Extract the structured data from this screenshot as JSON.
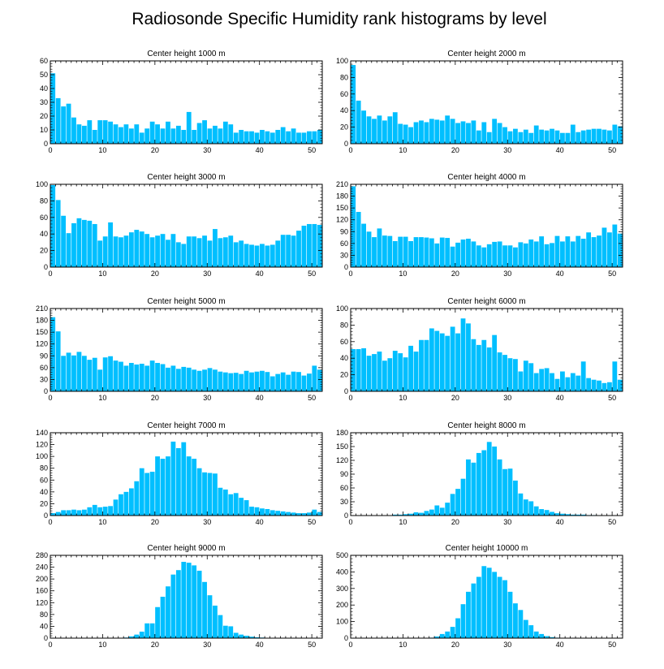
{
  "title": "Radiosonde Specific Humidity rank histograms by level",
  "bar_color": "#00bfff",
  "chart_data": [
    {
      "type": "bar",
      "title": "Center height 1000 m",
      "xticks": [
        0,
        10,
        20,
        30,
        40,
        50
      ],
      "yticks": [
        0,
        10,
        20,
        30,
        40,
        50,
        60
      ],
      "ylim": [
        0,
        60
      ],
      "xlim": [
        0,
        52
      ],
      "values": [
        51,
        33,
        27,
        29,
        19,
        14,
        13,
        17,
        10,
        17,
        17,
        16,
        14,
        12,
        14,
        11,
        14,
        8,
        11,
        16,
        14,
        11,
        16,
        11,
        13,
        10,
        23,
        10,
        15,
        17,
        11,
        13,
        11,
        16,
        14,
        8,
        10,
        9,
        9,
        8,
        10,
        9,
        8,
        10,
        12,
        9,
        11,
        8,
        8,
        9,
        9,
        10
      ]
    },
    {
      "type": "bar",
      "title": "Center height 2000 m",
      "xticks": [
        0,
        10,
        20,
        30,
        40,
        50
      ],
      "yticks": [
        0,
        20,
        40,
        60,
        80,
        100
      ],
      "ylim": [
        0,
        100
      ],
      "xlim": [
        0,
        52
      ],
      "values": [
        95,
        52,
        40,
        33,
        30,
        34,
        28,
        33,
        38,
        24,
        23,
        20,
        26,
        28,
        26,
        30,
        29,
        28,
        34,
        30,
        25,
        27,
        25,
        28,
        16,
        26,
        14,
        30,
        25,
        20,
        15,
        18,
        14,
        17,
        13,
        22,
        17,
        16,
        18,
        16,
        13,
        13,
        23,
        14,
        16,
        17,
        18,
        18,
        17,
        16,
        23,
        21
      ]
    },
    {
      "type": "bar",
      "title": "Center height 3000 m",
      "xticks": [
        0,
        10,
        20,
        30,
        40,
        50
      ],
      "yticks": [
        0,
        20,
        40,
        60,
        80,
        100
      ],
      "ylim": [
        0,
        100
      ],
      "xlim": [
        0,
        52
      ],
      "values": [
        99,
        81,
        62,
        41,
        53,
        59,
        57,
        56,
        52,
        32,
        37,
        54,
        37,
        36,
        38,
        42,
        45,
        43,
        40,
        36,
        38,
        40,
        33,
        40,
        30,
        28,
        37,
        37,
        35,
        38,
        32,
        46,
        35,
        36,
        38,
        30,
        32,
        28,
        27,
        26,
        28,
        26,
        27,
        32,
        39,
        39,
        38,
        44,
        50,
        52,
        52,
        51
      ]
    },
    {
      "type": "bar",
      "title": "Center height 4000 m",
      "xticks": [
        0,
        10,
        20,
        30,
        40,
        50
      ],
      "yticks": [
        0,
        30,
        60,
        90,
        120,
        150,
        180,
        210
      ],
      "ylim": [
        0,
        210
      ],
      "xlim": [
        0,
        52
      ],
      "values": [
        205,
        140,
        110,
        90,
        76,
        98,
        80,
        79,
        66,
        77,
        77,
        66,
        76,
        76,
        75,
        73,
        60,
        75,
        74,
        52,
        62,
        70,
        72,
        65,
        55,
        50,
        58,
        64,
        65,
        55,
        55,
        50,
        63,
        60,
        70,
        65,
        78,
        58,
        61,
        79,
        65,
        78,
        65,
        79,
        72,
        88,
        76,
        80,
        100,
        88,
        108,
        85
      ]
    },
    {
      "type": "bar",
      "title": "Center height 5000 m",
      "xticks": [
        0,
        10,
        20,
        30,
        40,
        50
      ],
      "yticks": [
        0,
        30,
        60,
        90,
        120,
        150,
        180,
        210
      ],
      "ylim": [
        0,
        210
      ],
      "xlim": [
        0,
        52
      ],
      "values": [
        188,
        152,
        90,
        98,
        91,
        100,
        90,
        80,
        85,
        55,
        86,
        89,
        78,
        75,
        65,
        72,
        68,
        70,
        65,
        78,
        72,
        69,
        60,
        65,
        57,
        62,
        60,
        55,
        52,
        55,
        59,
        55,
        50,
        48,
        46,
        47,
        44,
        52,
        48,
        50,
        52,
        49,
        38,
        44,
        48,
        42,
        50,
        49,
        40,
        45,
        65,
        55
      ]
    },
    {
      "type": "bar",
      "title": "Center height 6000 m",
      "xticks": [
        0,
        10,
        20,
        30,
        40,
        50
      ],
      "yticks": [
        0,
        20,
        40,
        60,
        80,
        100
      ],
      "ylim": [
        0,
        100
      ],
      "xlim": [
        0,
        52
      ],
      "values": [
        51,
        51,
        52,
        43,
        45,
        48,
        37,
        40,
        49,
        46,
        41,
        55,
        48,
        62,
        62,
        76,
        73,
        70,
        67,
        78,
        70,
        88,
        82,
        63,
        56,
        62,
        53,
        68,
        47,
        44,
        40,
        39,
        24,
        37,
        34,
        22,
        27,
        28,
        22,
        15,
        24,
        17,
        22,
        19,
        36,
        16,
        14,
        13,
        10,
        11,
        36,
        14
      ]
    },
    {
      "type": "bar",
      "title": "Center height 7000 m",
      "xticks": [
        0,
        10,
        20,
        30,
        40,
        50
      ],
      "yticks": [
        0,
        20,
        40,
        60,
        80,
        100,
        120,
        140
      ],
      "ylim": [
        0,
        140
      ],
      "xlim": [
        0,
        52
      ],
      "values": [
        4,
        6,
        9,
        9,
        10,
        9,
        10,
        14,
        18,
        14,
        15,
        16,
        27,
        36,
        40,
        46,
        58,
        80,
        72,
        74,
        100,
        96,
        100,
        125,
        114,
        124,
        100,
        96,
        80,
        73,
        72,
        71,
        47,
        44,
        36,
        38,
        30,
        26,
        15,
        14,
        12,
        11,
        9,
        8,
        7,
        6,
        5,
        4,
        4,
        5,
        10,
        6
      ]
    },
    {
      "type": "bar",
      "title": "Center height 8000 m",
      "xticks": [
        0,
        10,
        20,
        30,
        40,
        50
      ],
      "yticks": [
        0,
        30,
        60,
        90,
        120,
        150,
        180
      ],
      "ylim": [
        0,
        180
      ],
      "xlim": [
        0,
        52
      ],
      "values": [
        0,
        0,
        0,
        0,
        0,
        0,
        0,
        0,
        2,
        2,
        3,
        4,
        7,
        6,
        10,
        13,
        22,
        17,
        28,
        47,
        58,
        80,
        122,
        115,
        136,
        142,
        160,
        150,
        122,
        101,
        102,
        76,
        48,
        35,
        31,
        20,
        14,
        12,
        8,
        5,
        4,
        3,
        2,
        2,
        2,
        1,
        1,
        0,
        0,
        0,
        0,
        0
      ]
    },
    {
      "type": "bar",
      "title": "Center height 9000 m",
      "xticks": [
        0,
        10,
        20,
        30,
        40,
        50
      ],
      "yticks": [
        0,
        40,
        80,
        120,
        160,
        200,
        240,
        280
      ],
      "ylim": [
        0,
        280
      ],
      "xlim": [
        0,
        52
      ],
      "values": [
        0,
        0,
        0,
        0,
        0,
        0,
        0,
        0,
        0,
        0,
        0,
        0,
        0,
        0,
        2,
        6,
        12,
        22,
        50,
        50,
        105,
        140,
        175,
        215,
        230,
        258,
        255,
        246,
        228,
        190,
        145,
        110,
        78,
        42,
        40,
        18,
        12,
        8,
        5,
        3,
        2,
        1,
        0,
        0,
        0,
        0,
        0,
        0,
        0,
        0,
        0,
        0
      ]
    },
    {
      "type": "bar",
      "title": "Center height 10000 m",
      "xticks": [
        0,
        10,
        20,
        30,
        40,
        50
      ],
      "yticks": [
        0,
        100,
        200,
        300,
        400,
        500
      ],
      "ylim": [
        0,
        500
      ],
      "xlim": [
        0,
        52
      ],
      "values": [
        0,
        0,
        0,
        0,
        0,
        0,
        0,
        0,
        0,
        0,
        0,
        0,
        0,
        0,
        0,
        3,
        10,
        25,
        40,
        68,
        120,
        205,
        280,
        330,
        370,
        435,
        425,
        400,
        370,
        350,
        280,
        210,
        170,
        110,
        78,
        40,
        25,
        12,
        6,
        3,
        1,
        0,
        0,
        0,
        0,
        0,
        0,
        0,
        0,
        0,
        0,
        0
      ]
    }
  ]
}
